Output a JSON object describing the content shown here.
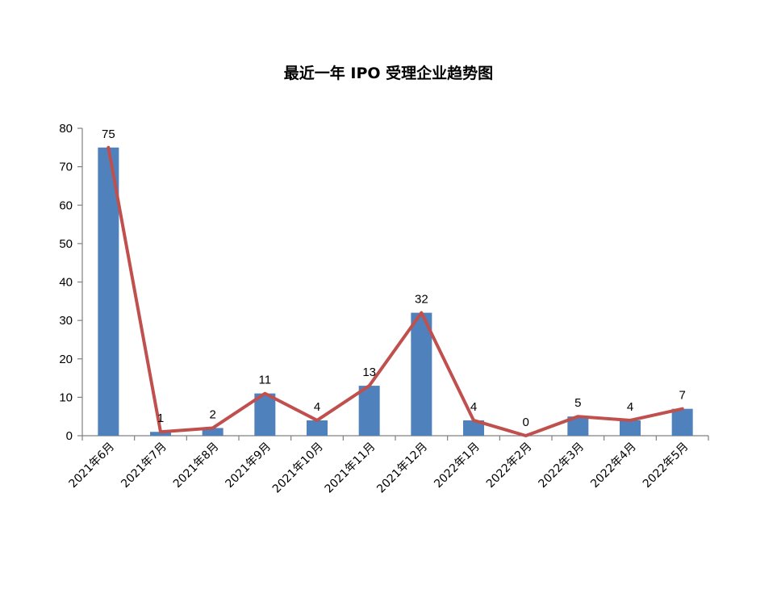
{
  "chart_data": {
    "type": "bar",
    "title": "最近一年 IPO 受理企业趋势图",
    "xlabel": "",
    "ylabel": "",
    "categories": [
      "2021年6月",
      "2021年7月",
      "2021年8月",
      "2021年9月",
      "2021年10月",
      "2021年11月",
      "2021年12月",
      "2022年1月",
      "2022年2月",
      "2022年3月",
      "2022年4月",
      "2022年5月"
    ],
    "values": [
      75,
      1,
      2,
      11,
      4,
      13,
      32,
      4,
      0,
      5,
      4,
      7
    ],
    "line_overlay": true,
    "data_labels": true,
    "ylim": [
      0,
      80
    ],
    "yticks": [
      0,
      10,
      20,
      30,
      40,
      50,
      60,
      70,
      80
    ],
    "grid": false,
    "legend": "none",
    "colors": {
      "bar": "#4f81bd",
      "line": "#c0504d",
      "axis": "#808080"
    }
  }
}
